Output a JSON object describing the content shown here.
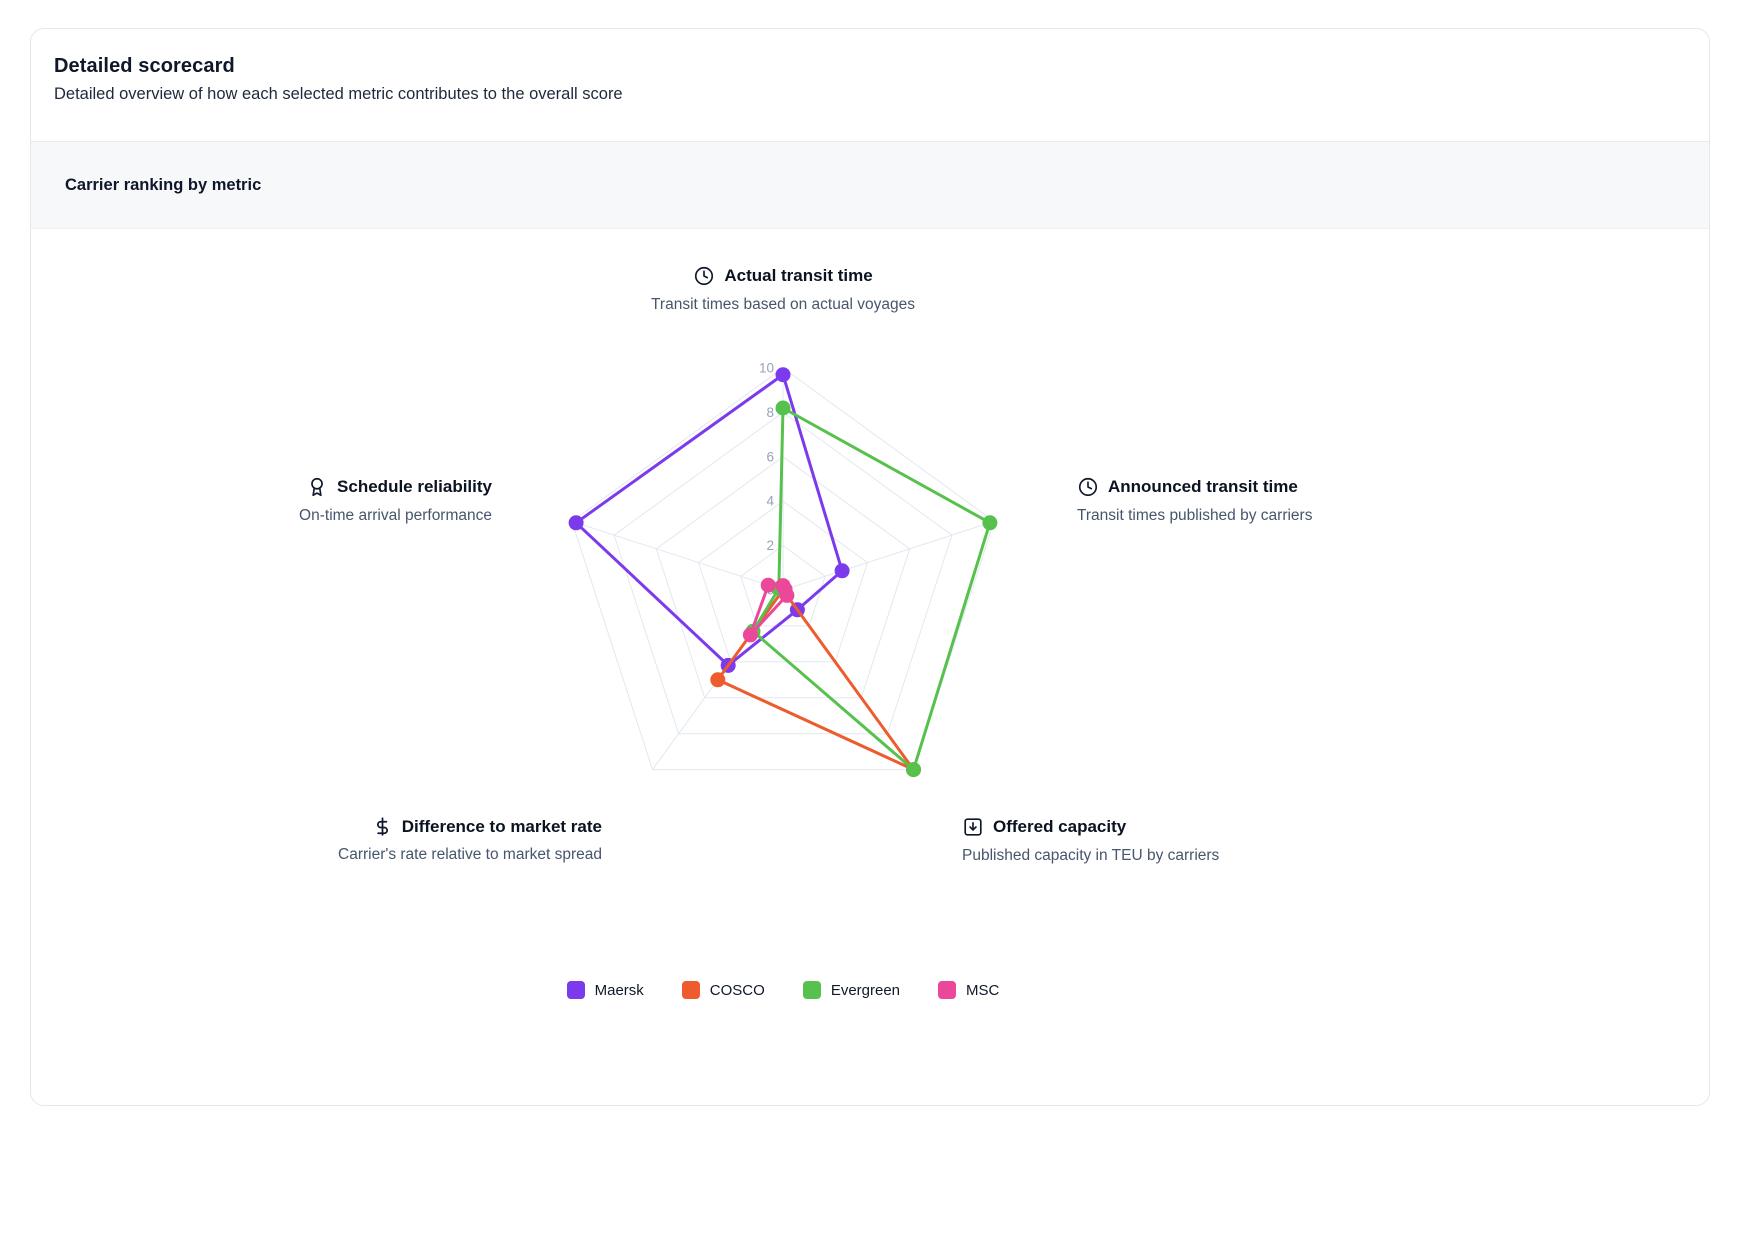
{
  "card": {
    "title": "Detailed scorecard",
    "subtitle": "Detailed overview of how each selected metric contributes to the overall score"
  },
  "section": {
    "header": "Carrier ranking by metric"
  },
  "chart_data": {
    "type": "radar",
    "title": "Carrier ranking by metric",
    "scale": {
      "min": 0,
      "max": 10,
      "ticks": [
        0,
        2,
        4,
        6,
        8,
        10
      ]
    },
    "grid_color": "#e2e8f0",
    "tick_color": "#94a3b8",
    "legend_position": "bottom",
    "axes": [
      {
        "label": "Actual transit time",
        "description": "Transit times based on actual voyages",
        "icon": "clock-icon"
      },
      {
        "label": "Announced transit time",
        "description": "Transit times published by carriers",
        "icon": "clock-icon"
      },
      {
        "label": "Offered capacity",
        "description": "Published capacity in TEU by carriers",
        "icon": "box-arrow-down-icon"
      },
      {
        "label": "Difference to market rate",
        "description": "Carrier's rate relative to market spread",
        "icon": "dollar-icon"
      },
      {
        "label": "Schedule reliability",
        "description": "On-time arrival performance",
        "icon": "award-icon"
      }
    ],
    "series": [
      {
        "name": "Maersk",
        "color": "#7c3aed",
        "values": [
          9.7,
          2.8,
          1.1,
          4.2,
          9.8
        ]
      },
      {
        "name": "COSCO",
        "color": "#ee5b2d",
        "values": [
          0,
          0,
          10,
          5,
          0
        ]
      },
      {
        "name": "Evergreen",
        "color": "#57c14e",
        "values": [
          8.2,
          9.8,
          10,
          2.3,
          0.2
        ]
      },
      {
        "name": "MSC",
        "color": "#ec4899",
        "values": [
          0.2,
          0.1,
          0.3,
          2.5,
          0.7
        ]
      }
    ]
  }
}
